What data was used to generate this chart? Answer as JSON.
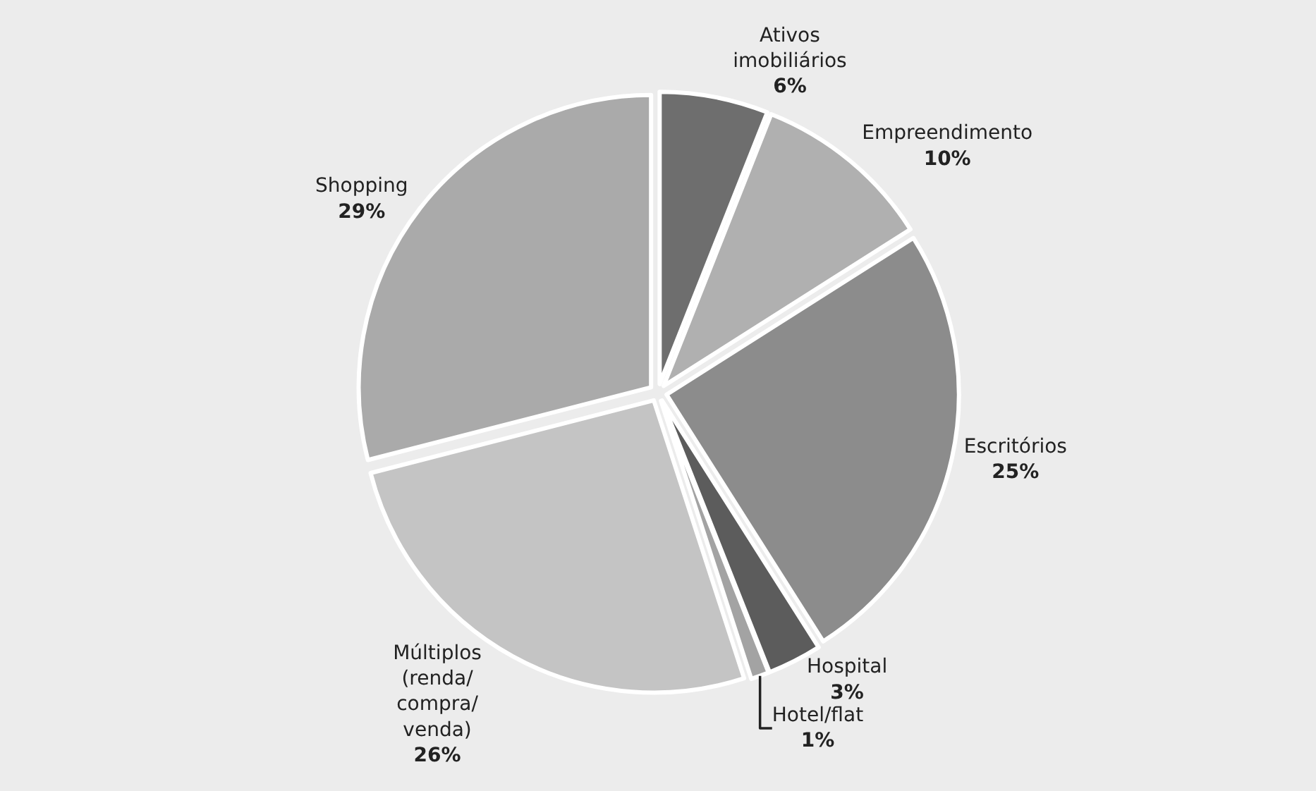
{
  "chart_data": {
    "type": "pie",
    "categories": [
      "Ativos\nimobiliários",
      "Empreendimento",
      "Escritórios",
      "Hospital",
      "Hotel/flat",
      "Múltiplos\n(renda/\ncompra/\nvenda)",
      "Shopping"
    ],
    "values": [
      6,
      10,
      25,
      3,
      1,
      26,
      29
    ],
    "value_labels": [
      "6%",
      "10%",
      "25%",
      "3%",
      "1%",
      "26%",
      "29%"
    ],
    "colors": [
      "#6e6e6e",
      "#b0b0b0",
      "#8c8c8c",
      "#5c5c5c",
      "#a3a3a3",
      "#c4c4c4",
      "#aaaaaa"
    ],
    "legend": false
  }
}
